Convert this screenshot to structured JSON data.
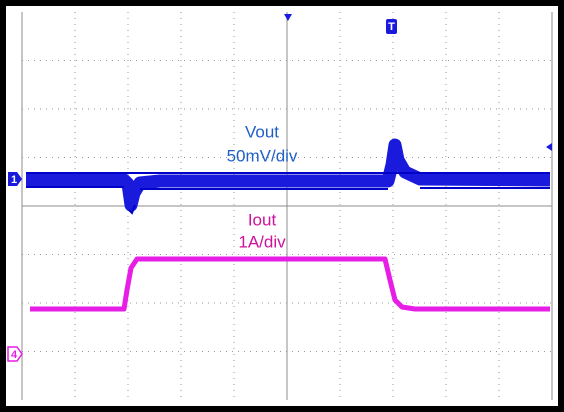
{
  "traces": [
    {
      "name": "Vout",
      "scale": "50mV/div"
    },
    {
      "name": "Iout",
      "scale": "1A/div"
    }
  ],
  "channels": [
    "1",
    "4"
  ],
  "trigger": "T"
}
